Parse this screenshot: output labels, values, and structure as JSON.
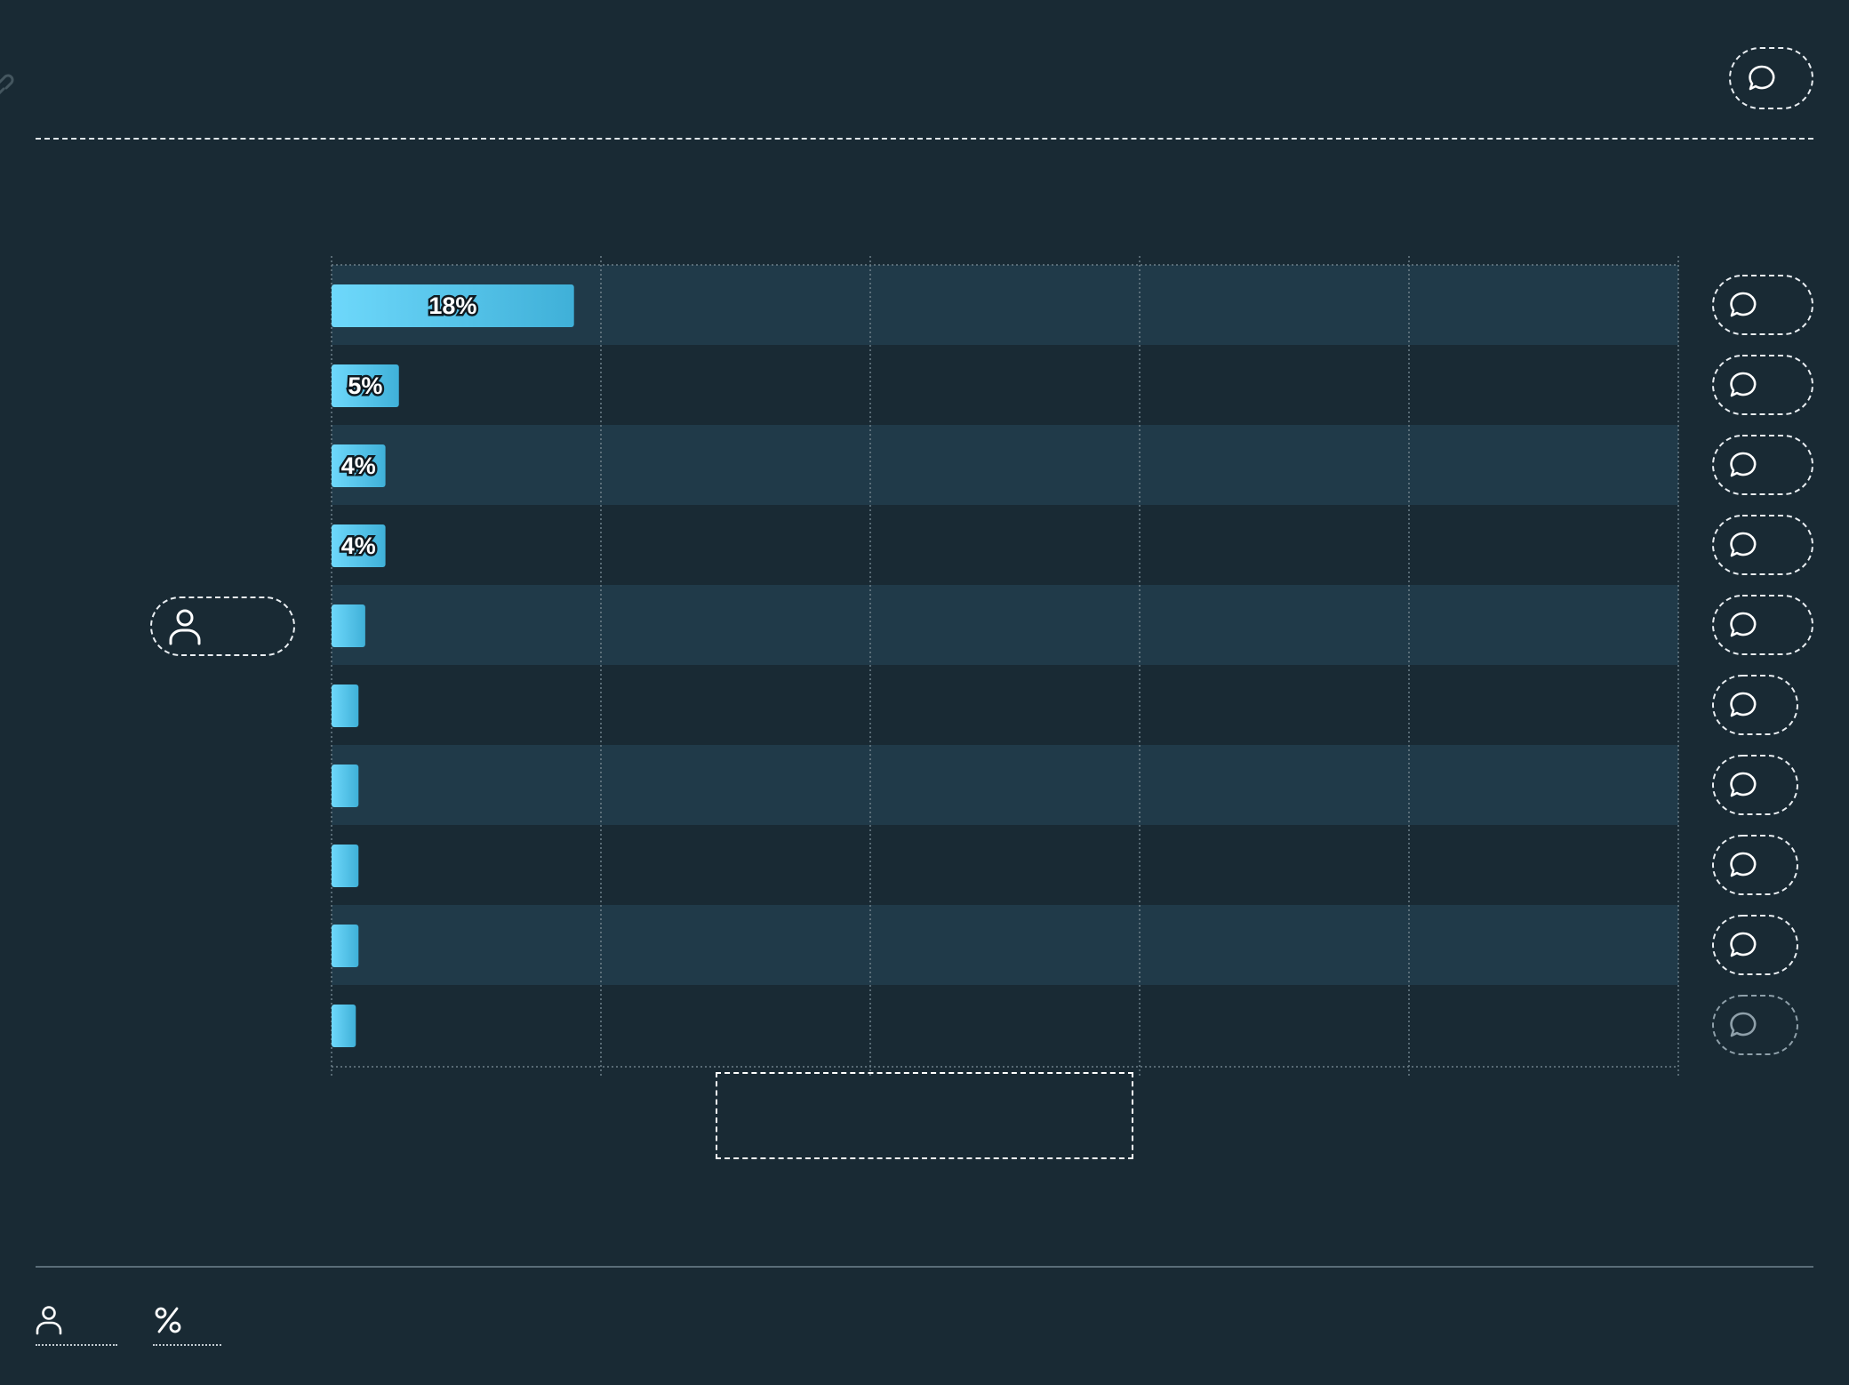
{
  "icons": {
    "link": "link-icon",
    "comment": "comment-icon",
    "user": "user-icon",
    "percent": "percent-icon"
  },
  "colors": {
    "background": "#192a34",
    "band": "#203a49",
    "bar_start": "#6ed8fb",
    "bar_end": "#3fb0d8",
    "grid": "#6d7f89"
  },
  "chart_data": {
    "type": "bar",
    "orientation": "horizontal",
    "categories": [],
    "values": [
      18,
      5,
      4,
      4,
      2.5,
      2,
      2,
      2,
      2,
      1.8
    ],
    "labels": [
      "18%",
      "5%",
      "4%",
      "4%",
      "",
      "",
      "",
      "",
      "",
      ""
    ],
    "xlim": [
      0,
      100
    ],
    "grid": true,
    "title": "",
    "xlabel": "",
    "ylabel": ""
  }
}
